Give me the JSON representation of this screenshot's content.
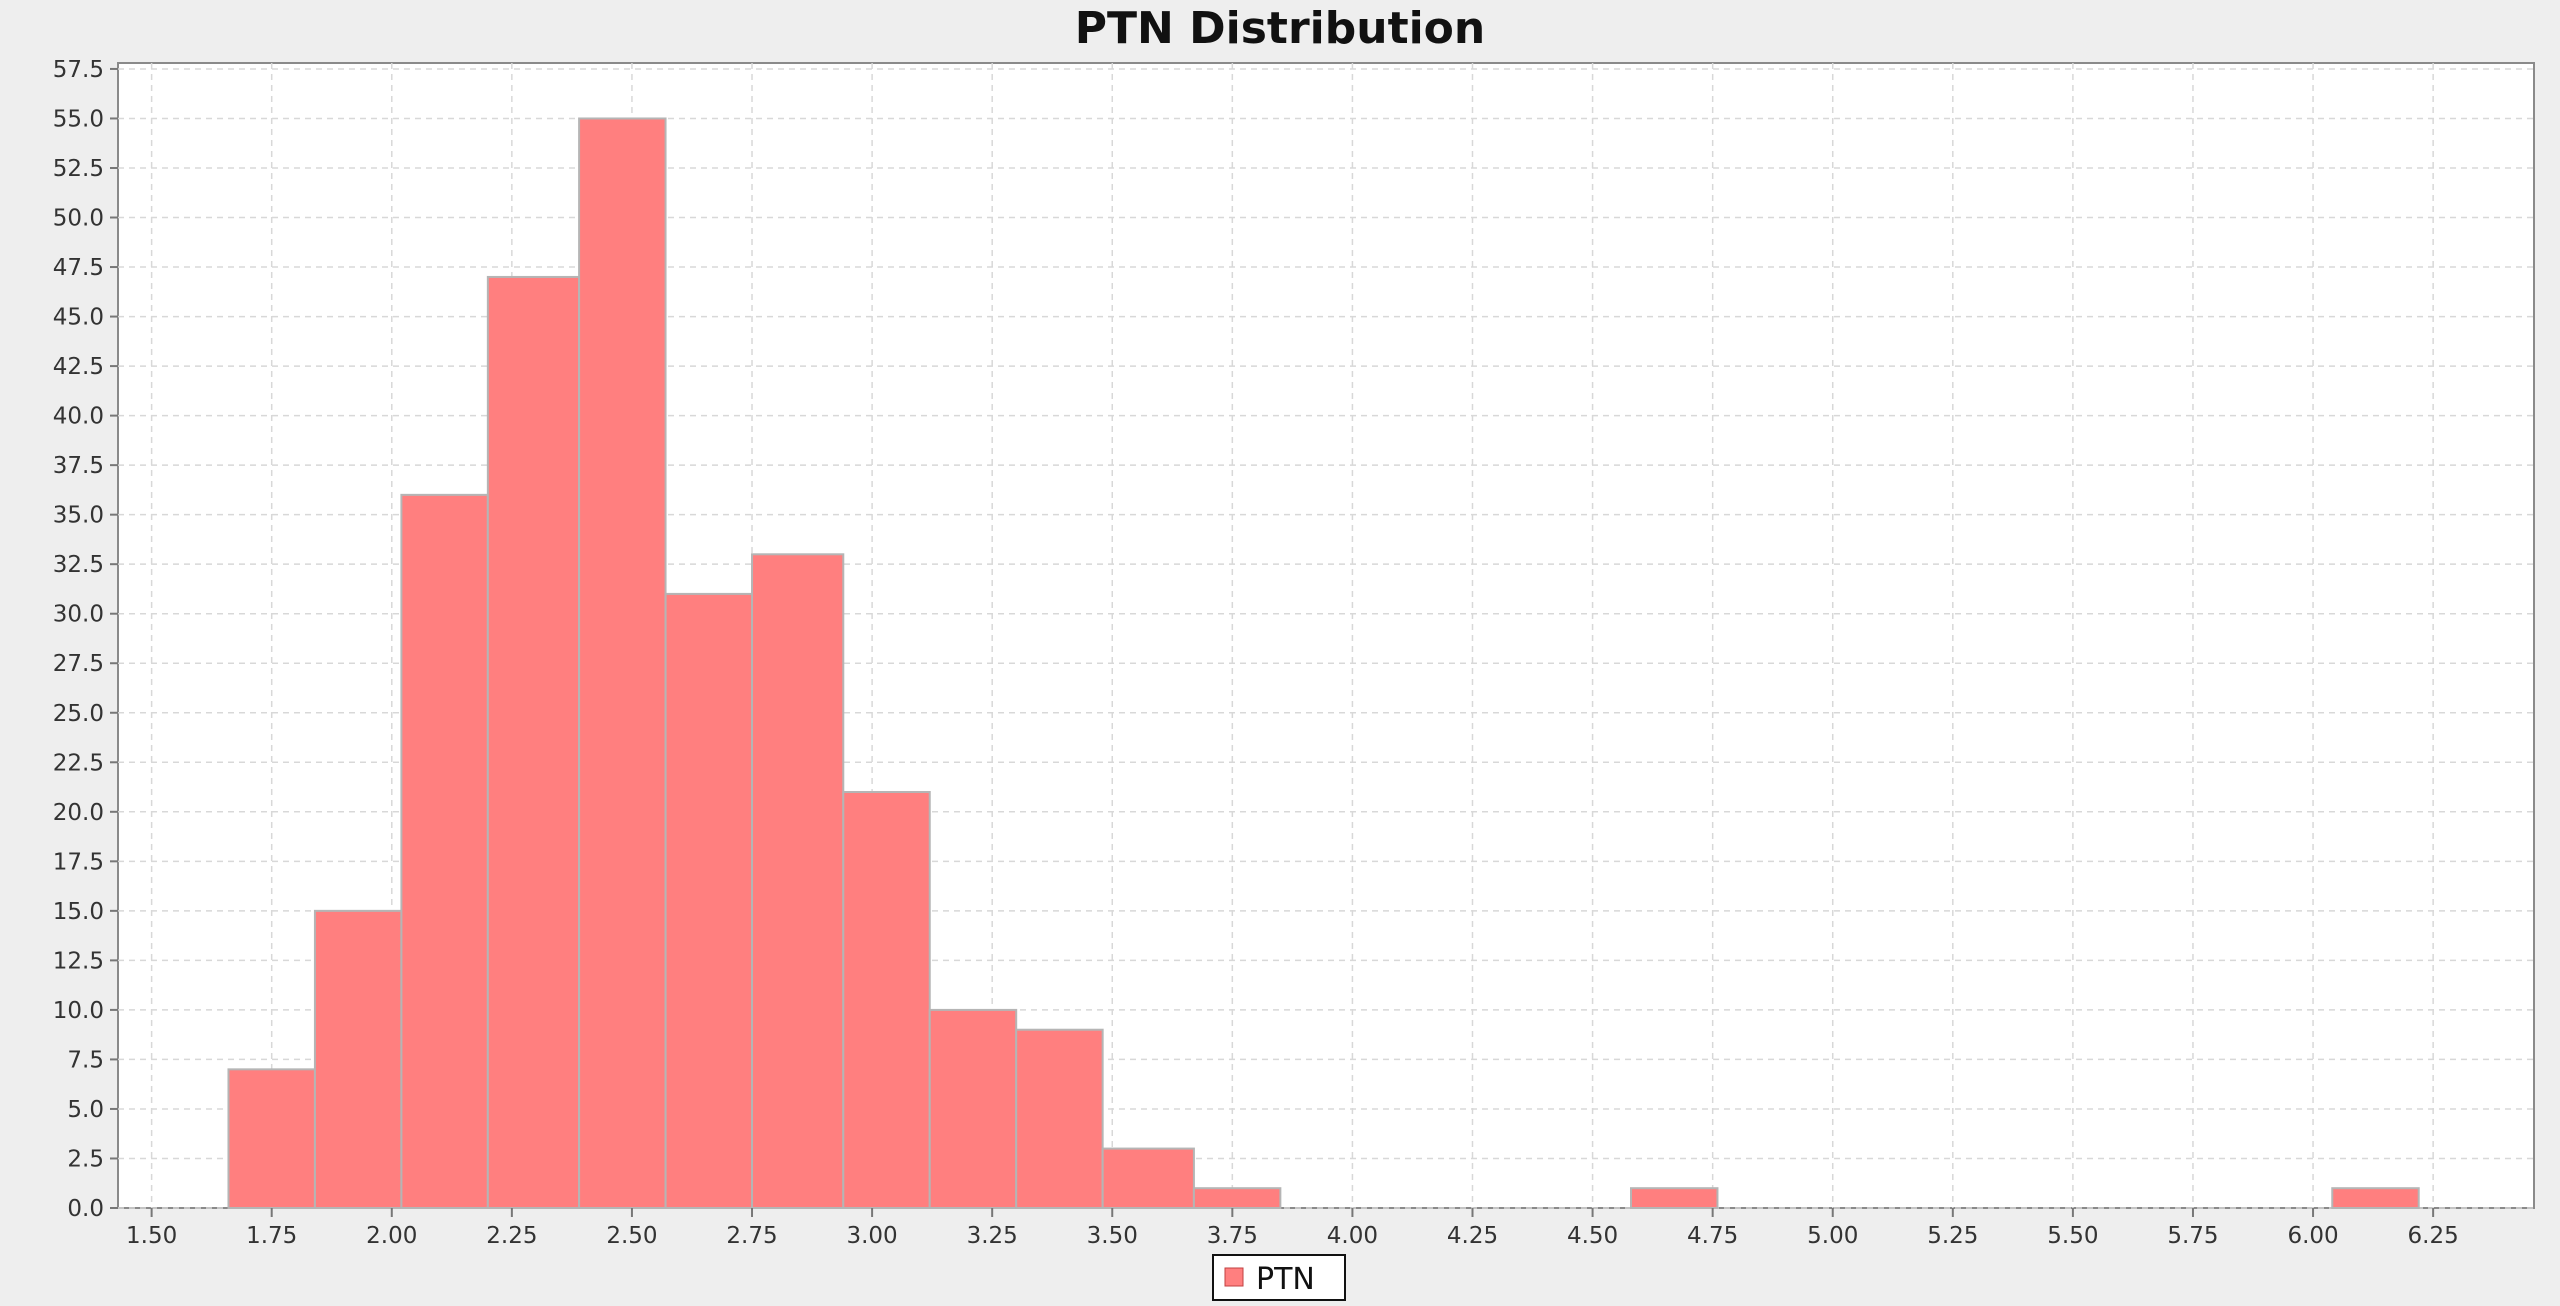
{
  "chart_data": {
    "type": "bar",
    "title": "PTN Distribution",
    "xlabel": "",
    "ylabel": "",
    "xlim": [
      1.43,
      6.46
    ],
    "ylim": [
      0,
      57.8
    ],
    "x_ticks": [
      "1.50",
      "1.75",
      "2.00",
      "2.25",
      "2.50",
      "2.75",
      "3.00",
      "3.25",
      "3.50",
      "3.75",
      "4.00",
      "4.25",
      "4.50",
      "4.75",
      "5.00",
      "5.25",
      "5.50",
      "5.75",
      "6.00",
      "6.25"
    ],
    "y_ticks": [
      "0.0",
      "2.5",
      "5.0",
      "7.5",
      "10.0",
      "12.5",
      "15.0",
      "17.5",
      "20.0",
      "22.5",
      "25.0",
      "27.5",
      "30.0",
      "32.5",
      "35.0",
      "37.5",
      "40.0",
      "42.5",
      "45.0",
      "47.5",
      "50.0",
      "52.5",
      "55.0",
      "57.5"
    ],
    "grid": true,
    "legend_position": "bottom-center",
    "series": [
      {
        "name": "PTN",
        "color": "#ff7f7f",
        "bins": [
          {
            "x0": 1.66,
            "x1": 1.84,
            "value": 7
          },
          {
            "x0": 1.84,
            "x1": 2.02,
            "value": 15
          },
          {
            "x0": 2.02,
            "x1": 2.2,
            "value": 36
          },
          {
            "x0": 2.2,
            "x1": 2.39,
            "value": 47
          },
          {
            "x0": 2.39,
            "x1": 2.57,
            "value": 55
          },
          {
            "x0": 2.57,
            "x1": 2.75,
            "value": 31
          },
          {
            "x0": 2.75,
            "x1": 2.94,
            "value": 33
          },
          {
            "x0": 2.94,
            "x1": 3.12,
            "value": 21
          },
          {
            "x0": 3.12,
            "x1": 3.3,
            "value": 10
          },
          {
            "x0": 3.3,
            "x1": 3.48,
            "value": 9
          },
          {
            "x0": 3.48,
            "x1": 3.67,
            "value": 3
          },
          {
            "x0": 3.67,
            "x1": 3.85,
            "value": 1
          },
          {
            "x0": 4.58,
            "x1": 4.76,
            "value": 1
          },
          {
            "x0": 6.04,
            "x1": 6.22,
            "value": 1
          }
        ]
      }
    ]
  }
}
